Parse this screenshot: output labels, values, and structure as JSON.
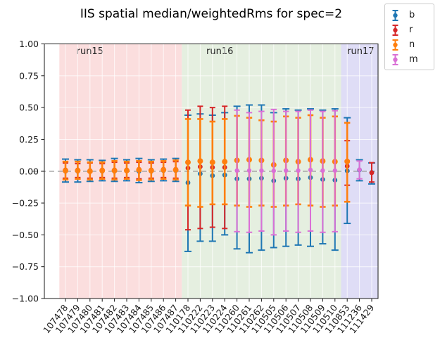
{
  "window": {
    "background": "#ffffff"
  },
  "chart_data": {
    "type": "errorbar-scatter",
    "title": "IIS spatial median/weightedRms for spec=2",
    "xlabel": "",
    "ylabel": "",
    "ylim": [
      -1.0,
      1.0
    ],
    "ytick_values": [
      1.0,
      0.75,
      0.5,
      0.25,
      0.0,
      -0.25,
      -0.5,
      -0.75,
      -1.0
    ],
    "ytick_labels": [
      "1.00",
      "0.75",
      "0.50",
      "0.25",
      "0.00",
      "−0.25",
      "−0.50",
      "−0.75",
      "−1.00"
    ],
    "grid": {
      "on": true,
      "color": "#ffffff"
    },
    "zero_line": {
      "y": 0.0,
      "style": "dashed",
      "color": "#9e9e9e"
    },
    "categories": [
      "107478",
      "107479",
      "107480",
      "107481",
      "107482",
      "107483",
      "107484",
      "107485",
      "107486",
      "107487",
      "110178",
      "110222",
      "110223",
      "110224",
      "110260",
      "110261",
      "110262",
      "110505",
      "110506",
      "110507",
      "110508",
      "110509",
      "110510",
      "110853",
      "111236",
      "111429"
    ],
    "regions": [
      {
        "label": "run15",
        "start_index": 0,
        "end_index": 9,
        "color": "#fbdede",
        "label_col": 2.0
      },
      {
        "label": "run16",
        "start_index": 10,
        "end_index": 22,
        "color": "#e5efe0",
        "label_col": 12.6
      },
      {
        "label": "run17",
        "start_index": 23,
        "end_index": 25,
        "color": "#dfddf6",
        "label_col": 24.1
      }
    ],
    "series_order": [
      "b",
      "r",
      "n",
      "m"
    ],
    "series_colors": {
      "b": "#1f77b4",
      "r": "#d62728",
      "n": "#ff7f0e",
      "m": "#da70d6"
    },
    "legend": {
      "position": "upper right, outside axes",
      "entries": [
        {
          "key": "b",
          "label": "b",
          "color": "#1f77b4"
        },
        {
          "key": "r",
          "label": "r",
          "color": "#d62728"
        },
        {
          "key": "n",
          "label": "n",
          "color": "#ff7f0e"
        },
        {
          "key": "m",
          "label": "m",
          "color": "#da70d6"
        }
      ]
    },
    "value_format": "[median, errorbar_low, errorbar_high]",
    "points": [
      {
        "category": "107478",
        "b": [
          0.0,
          -0.085,
          0.095
        ],
        "r": [
          0.01,
          -0.055,
          0.065
        ],
        "n": [
          0.005,
          -0.065,
          0.075
        ]
      },
      {
        "category": "107479",
        "b": [
          0.0,
          -0.085,
          0.09
        ],
        "r": [
          0.01,
          -0.05,
          0.06
        ],
        "n": [
          0.005,
          -0.06,
          0.075
        ]
      },
      {
        "category": "107480",
        "b": [
          0.0,
          -0.08,
          0.09
        ],
        "r": [
          0.005,
          -0.055,
          0.065
        ],
        "n": [
          0.0,
          -0.065,
          0.07
        ]
      },
      {
        "category": "107481",
        "b": [
          0.0,
          -0.075,
          0.085
        ],
        "r": [
          0.01,
          -0.05,
          0.06
        ],
        "n": [
          0.005,
          -0.06,
          0.07
        ]
      },
      {
        "category": "107482",
        "b": [
          0.0,
          -0.08,
          0.1
        ],
        "r": [
          0.01,
          -0.055,
          0.07
        ],
        "n": [
          0.005,
          -0.065,
          0.08
        ]
      },
      {
        "category": "107483",
        "b": [
          0.005,
          -0.075,
          0.09
        ],
        "r": [
          0.01,
          -0.05,
          0.065
        ],
        "n": [
          0.005,
          -0.06,
          0.075
        ]
      },
      {
        "category": "107484",
        "b": [
          0.0,
          -0.09,
          0.1
        ],
        "r": [
          0.015,
          -0.06,
          0.07
        ],
        "n": [
          0.01,
          -0.07,
          0.08
        ]
      },
      {
        "category": "107485",
        "b": [
          0.0,
          -0.08,
          0.09
        ],
        "r": [
          0.01,
          -0.055,
          0.065
        ],
        "n": [
          0.005,
          -0.065,
          0.075
        ]
      },
      {
        "category": "107486",
        "b": [
          0.005,
          -0.075,
          0.095
        ],
        "r": [
          0.015,
          -0.05,
          0.07
        ],
        "n": [
          0.01,
          -0.06,
          0.08
        ]
      },
      {
        "category": "107487",
        "b": [
          0.005,
          -0.08,
          0.1
        ],
        "r": [
          0.015,
          -0.055,
          0.075
        ],
        "n": [
          0.01,
          -0.065,
          0.085
        ]
      },
      {
        "category": "110178",
        "b": [
          -0.09,
          -0.63,
          0.44
        ],
        "r": [
          0.025,
          -0.46,
          0.48
        ],
        "n": [
          0.07,
          -0.27,
          0.41
        ]
      },
      {
        "category": "110222",
        "b": [
          -0.02,
          -0.55,
          0.45
        ],
        "r": [
          0.035,
          -0.45,
          0.51
        ],
        "n": [
          0.08,
          -0.28,
          0.41
        ]
      },
      {
        "category": "110223",
        "b": [
          -0.035,
          -0.55,
          0.44
        ],
        "r": [
          0.03,
          -0.44,
          0.5
        ],
        "n": [
          0.07,
          -0.26,
          0.39
        ]
      },
      {
        "category": "110224",
        "b": [
          -0.03,
          -0.5,
          0.46
        ],
        "r": [
          0.03,
          -0.45,
          0.51
        ],
        "n": [
          0.075,
          -0.26,
          0.41
        ]
      },
      {
        "category": "110260",
        "b": [
          -0.06,
          -0.61,
          0.51
        ],
        "n": [
          0.085,
          -0.27,
          0.435
        ],
        "m": [
          0.005,
          -0.475,
          0.48
        ]
      },
      {
        "category": "110261",
        "b": [
          -0.06,
          -0.64,
          0.52
        ],
        "n": [
          0.09,
          -0.28,
          0.42
        ],
        "m": [
          0.005,
          -0.48,
          0.46
        ]
      },
      {
        "category": "110262",
        "b": [
          -0.055,
          -0.62,
          0.52
        ],
        "n": [
          0.085,
          -0.27,
          0.4
        ],
        "m": [
          0.005,
          -0.47,
          0.47
        ]
      },
      {
        "category": "110505",
        "b": [
          -0.075,
          -0.6,
          0.46
        ],
        "n": [
          0.05,
          -0.28,
          0.39
        ],
        "m": [
          0.003,
          -0.5,
          0.485
        ]
      },
      {
        "category": "110506",
        "b": [
          -0.055,
          -0.59,
          0.49
        ],
        "n": [
          0.085,
          -0.27,
          0.43
        ],
        "m": [
          0.005,
          -0.47,
          0.47
        ]
      },
      {
        "category": "110507",
        "b": [
          -0.06,
          -0.58,
          0.48
        ],
        "n": [
          0.075,
          -0.26,
          0.42
        ],
        "m": [
          0.005,
          -0.48,
          0.47
        ]
      },
      {
        "category": "110508",
        "b": [
          -0.05,
          -0.59,
          0.49
        ],
        "n": [
          0.09,
          -0.27,
          0.44
        ],
        "m": [
          0.01,
          -0.47,
          0.48
        ]
      },
      {
        "category": "110509",
        "b": [
          -0.065,
          -0.57,
          0.48
        ],
        "n": [
          0.08,
          -0.28,
          0.42
        ],
        "m": [
          0.005,
          -0.48,
          0.47
        ]
      },
      {
        "category": "110510",
        "b": [
          -0.07,
          -0.62,
          0.49
        ],
        "n": [
          0.075,
          -0.27,
          0.43
        ],
        "m": [
          0.005,
          -0.475,
          0.475
        ]
      },
      {
        "category": "110853",
        "b": [
          0.003,
          -0.41,
          0.42
        ],
        "r": [
          0.04,
          -0.11,
          0.24
        ],
        "n": [
          0.077,
          -0.24,
          0.38
        ]
      },
      {
        "category": "111236",
        "b": [
          0.01,
          -0.075,
          0.09
        ],
        "m": [
          0.012,
          -0.06,
          0.08
        ]
      },
      {
        "category": "111429",
        "b": [
          -0.01,
          -0.1,
          0.065
        ],
        "r": [
          -0.012,
          -0.085,
          0.067
        ]
      }
    ]
  }
}
